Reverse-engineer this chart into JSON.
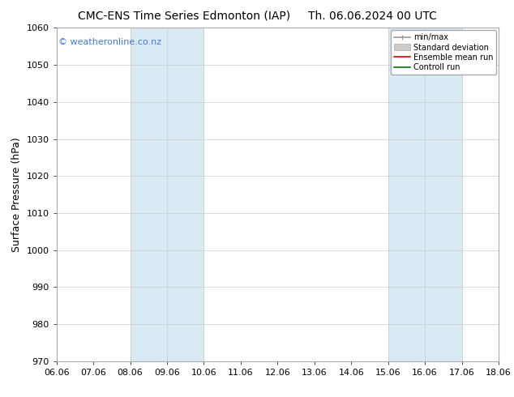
{
  "title_left": "CMC-ENS Time Series Edmonton (IAP)",
  "title_right": "Th. 06.06.2024 00 UTC",
  "ylabel": "Surface Pressure (hPa)",
  "ylim": [
    970,
    1060
  ],
  "yticks": [
    970,
    980,
    990,
    1000,
    1010,
    1020,
    1030,
    1040,
    1050,
    1060
  ],
  "xticks": [
    "06.06",
    "07.06",
    "08.06",
    "09.06",
    "10.06",
    "11.06",
    "12.06",
    "13.06",
    "14.06",
    "15.06",
    "16.06",
    "17.06",
    "18.06"
  ],
  "xtick_positions": [
    0,
    1,
    2,
    3,
    4,
    5,
    6,
    7,
    8,
    9,
    10,
    11,
    12
  ],
  "shaded_regions": [
    {
      "x_start": 2,
      "x_end": 4,
      "color": "#daeaf5"
    },
    {
      "x_start": 9,
      "x_end": 11,
      "color": "#daeaf5"
    }
  ],
  "inner_lines": [
    {
      "x": 3,
      "color": "#c0d8ea"
    },
    {
      "x": 10,
      "color": "#c0d8ea"
    }
  ],
  "watermark_text": "© weatheronline.co.nz",
  "watermark_color": "#4477cc",
  "legend_entries": [
    {
      "label": "min/max",
      "color": "#999999",
      "lw": 1.2
    },
    {
      "label": "Standard deviation",
      "color": "#cccccc",
      "lw": 5
    },
    {
      "label": "Ensemble mean run",
      "color": "#dd0000",
      "lw": 1.2
    },
    {
      "label": "Controll run",
      "color": "#007700",
      "lw": 1.2
    }
  ],
  "bg_color": "#ffffff",
  "grid_color": "#cccccc",
  "title_fontsize": 10,
  "ylabel_fontsize": 9,
  "tick_fontsize": 8,
  "legend_fontsize": 7,
  "watermark_fontsize": 8
}
